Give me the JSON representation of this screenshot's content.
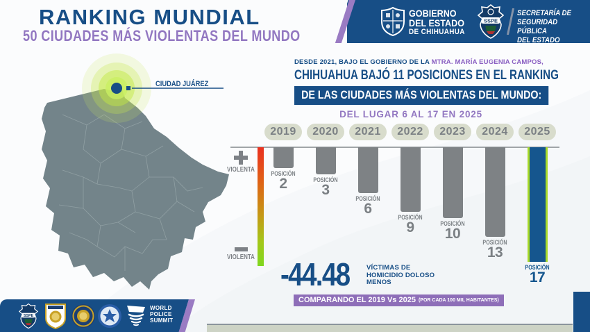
{
  "header": {
    "title": "RANKING MUNDIAL",
    "subtitle": "50 CIUDADES MÁS VIOLENTAS DEL MUNDO",
    "gov_name": [
      "GOBIERNO",
      "DEL ESTADO",
      "DE CHIHUAHUA"
    ],
    "sspe_badge_text": "SSPE",
    "secretaria": [
      "SECRETARÍA DE",
      "SEGURIDAD PÚBLICA",
      "DEL ESTADO"
    ]
  },
  "map": {
    "city_label": "CIUDAD JUÁREZ"
  },
  "intro": {
    "line1": "DESDE 2021, BAJO EL GOBIERNO DE LA ",
    "line1_highlight": "MTRA. MARÍA EUGENIA CAMPOS,",
    "line2": "CHIHUAHUA BAJÓ 11 POSICIONES EN EL RANKING",
    "line3": "DE LAS CIUDADES MÁS VIOLENTAS DEL MUNDO:",
    "line4": "DEL LUGAR 6 AL 17 EN 2025"
  },
  "chart_data": {
    "type": "bar",
    "categories": [
      "2019",
      "2020",
      "2021",
      "2022",
      "2023",
      "2024",
      "2025"
    ],
    "values": [
      2,
      3,
      6,
      9,
      10,
      13,
      17
    ],
    "value_label_prefix": "POSICIÓN",
    "bars_direction": "down-from-baseline",
    "highlight_category": "2025",
    "scale": {
      "plus_label": "VIOLENTA",
      "minus_label": "VIOLENTA",
      "gradient": [
        "#ea3120",
        "#e06016",
        "#c49a16",
        "#7fd71f"
      ]
    },
    "bar_color": "#7e8285",
    "highlight_bar_color": "#15568e",
    "highlight_bar_border": "#a8da29",
    "year_pill_bg": "#d8dccc",
    "label_color": "#7b8084"
  },
  "summary": {
    "big_number": "-44.48",
    "caption": [
      "VÍCTIMAS DE",
      "HOMICIDIO DOLOSO",
      "MENOS"
    ],
    "banner": "COMPARANDO EL 2019 Vs 2025",
    "banner_note": "(POR CADA 100 MIL HABITANTES)"
  },
  "footer": {
    "logos": [
      "sspe-badge",
      "calea-accreditation-shield",
      "calea-gold-seal",
      "accreditation-blue-seal",
      "world-police-summit"
    ],
    "wps_text": [
      "WORLD",
      "POLICE",
      "SUMMIT"
    ]
  },
  "colors": {
    "dark_blue": "#174e86",
    "purple": "#9277c1",
    "banner_purple": "#8e6eb8",
    "map_gray": "#73848a",
    "lime": "#a8da29",
    "bar_gray": "#7e8285"
  }
}
